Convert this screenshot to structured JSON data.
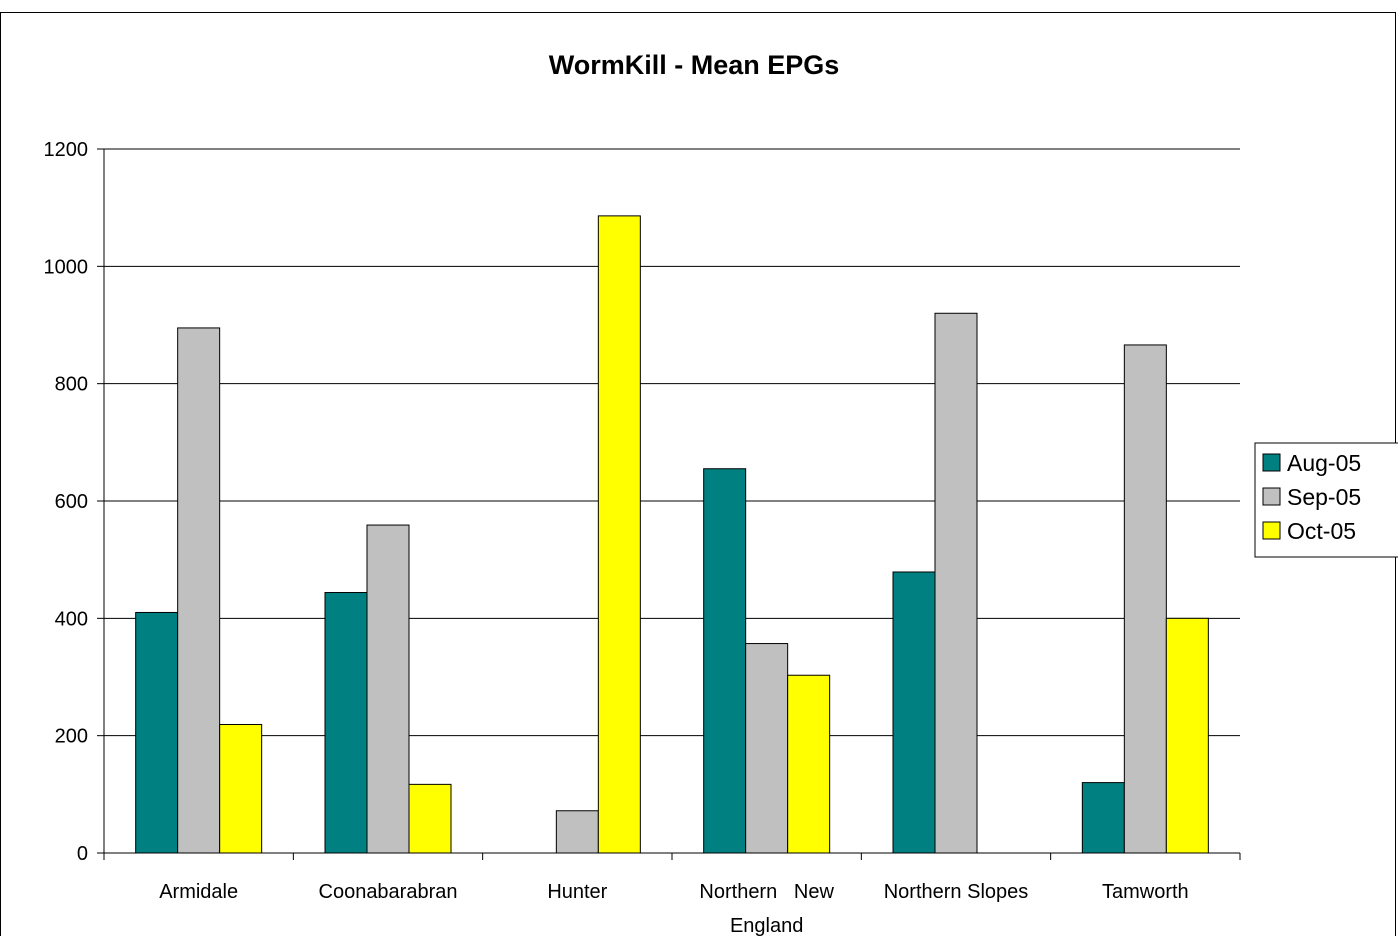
{
  "chart_data": {
    "type": "bar",
    "title": "WormKill - Mean EPGs",
    "xlabel": "",
    "ylabel": "",
    "categories": [
      "Armidale",
      "Coonabarabran",
      "Hunter",
      "Northern  New England",
      "Northern Slopes",
      "Tamworth"
    ],
    "category_lines": [
      [
        "Armidale"
      ],
      [
        "Coonabarabran"
      ],
      [
        "Hunter"
      ],
      [
        "Northern   New",
        "England"
      ],
      [
        "Northern Slopes"
      ],
      [
        "Tamworth"
      ]
    ],
    "series": [
      {
        "name": "Aug-05",
        "color": "#008080",
        "values": [
          410,
          444,
          0,
          655,
          479,
          120
        ]
      },
      {
        "name": "Sep-05",
        "color": "#c0c0c0",
        "values": [
          895,
          559,
          72,
          357,
          920,
          866
        ]
      },
      {
        "name": "Oct-05",
        "color": "#ffff00",
        "values": [
          219,
          117,
          1086,
          303,
          0,
          400
        ]
      }
    ],
    "ylim": [
      0,
      1200
    ],
    "yticks": [
      0,
      200,
      400,
      600,
      800,
      1000,
      1200
    ],
    "grid": true,
    "legend_position": "right"
  }
}
